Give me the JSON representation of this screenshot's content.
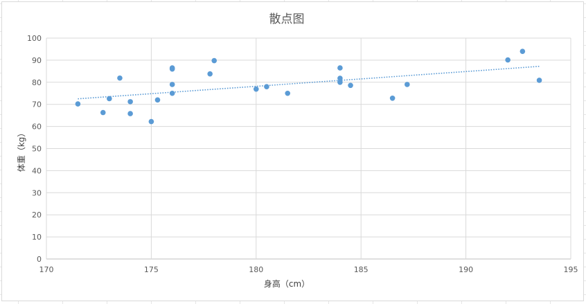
{
  "chart_data": {
    "type": "scatter",
    "title": "散点图",
    "xlabel": "身高（cm）",
    "ylabel": "体重（kg）",
    "xlim": [
      170,
      195
    ],
    "ylim": [
      0,
      100
    ],
    "xticks": [
      170,
      175,
      180,
      185,
      190,
      195
    ],
    "yticks": [
      0,
      10,
      20,
      30,
      40,
      50,
      60,
      70,
      80,
      90,
      100
    ],
    "grid": true,
    "legend": "none",
    "marker_color": "#5b9bd5",
    "trendline": {
      "type": "linear",
      "style": "dotted",
      "color": "#5b9bd5",
      "x": [
        171.5,
        193.5
      ],
      "y": [
        72.5,
        87.2
      ]
    },
    "points": [
      {
        "x": 171.5,
        "y": 70.2
      },
      {
        "x": 172.7,
        "y": 66.3
      },
      {
        "x": 173.0,
        "y": 72.6
      },
      {
        "x": 173.5,
        "y": 81.9
      },
      {
        "x": 174.0,
        "y": 71.2
      },
      {
        "x": 174.0,
        "y": 65.8
      },
      {
        "x": 175.0,
        "y": 62.2
      },
      {
        "x": 175.3,
        "y": 72.0
      },
      {
        "x": 176.0,
        "y": 86.5
      },
      {
        "x": 176.0,
        "y": 86.0
      },
      {
        "x": 176.0,
        "y": 79.0
      },
      {
        "x": 176.0,
        "y": 75.0
      },
      {
        "x": 177.8,
        "y": 83.8
      },
      {
        "x": 178.0,
        "y": 89.8
      },
      {
        "x": 180.0,
        "y": 76.9
      },
      {
        "x": 180.5,
        "y": 78.0
      },
      {
        "x": 181.5,
        "y": 75.0
      },
      {
        "x": 184.0,
        "y": 86.5
      },
      {
        "x": 184.0,
        "y": 81.8
      },
      {
        "x": 184.0,
        "y": 80.0
      },
      {
        "x": 184.5,
        "y": 78.6
      },
      {
        "x": 186.5,
        "y": 72.8
      },
      {
        "x": 187.2,
        "y": 79.0
      },
      {
        "x": 192.0,
        "y": 90.1
      },
      {
        "x": 192.7,
        "y": 94.0
      },
      {
        "x": 193.5,
        "y": 80.9
      }
    ]
  }
}
